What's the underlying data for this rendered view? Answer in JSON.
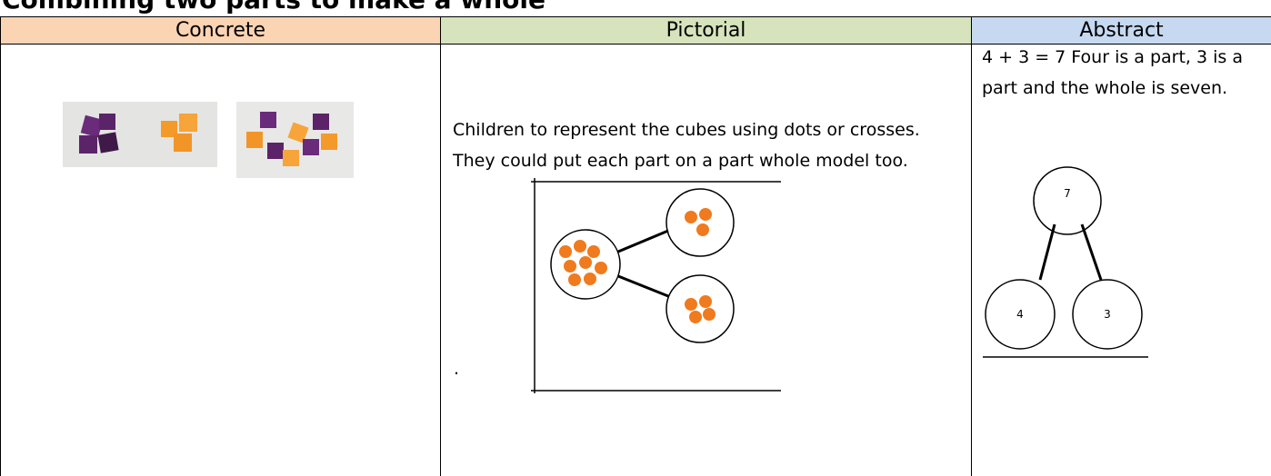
{
  "header": {
    "title": "Combining two parts to make a whole"
  },
  "table": {
    "columns": [
      "Concrete",
      "Pictorial",
      "Abstract"
    ],
    "pictorial": {
      "text": "Children to represent the cubes using dots or crosses. They could put each part on a part whole model too.",
      "note": "."
    },
    "abstract": {
      "text": "4 + 3 = 7 Four is a part, 3 is a part and the whole is seven.",
      "whole": "7",
      "parts": [
        "4",
        "3"
      ]
    }
  }
}
